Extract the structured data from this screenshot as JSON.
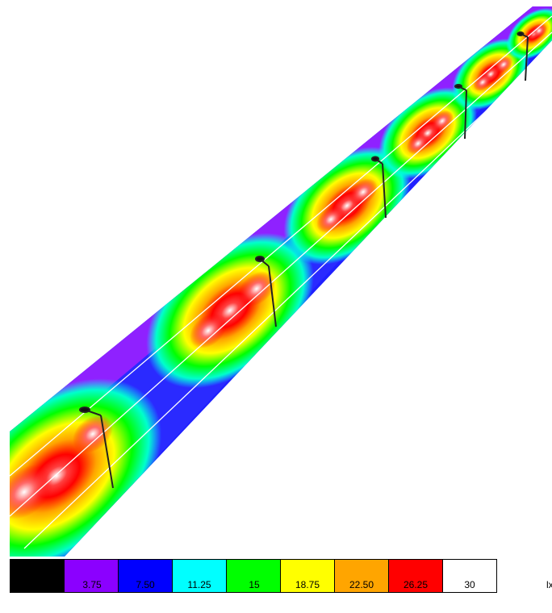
{
  "legend": {
    "levels": [
      {
        "label": "0",
        "color": "#000000"
      },
      {
        "label": "3.75",
        "color": "#8b00ff"
      },
      {
        "label": "7.50",
        "color": "#0000ff"
      },
      {
        "label": "11.25",
        "color": "#00ffff"
      },
      {
        "label": "15",
        "color": "#00ff00"
      },
      {
        "label": "18.75",
        "color": "#ffff00"
      },
      {
        "label": "22.50",
        "color": "#ffa500"
      },
      {
        "label": "26.25",
        "color": "#ff0000"
      },
      {
        "label": "30",
        "color": "#ffffff"
      }
    ],
    "unit": "lx"
  }
}
